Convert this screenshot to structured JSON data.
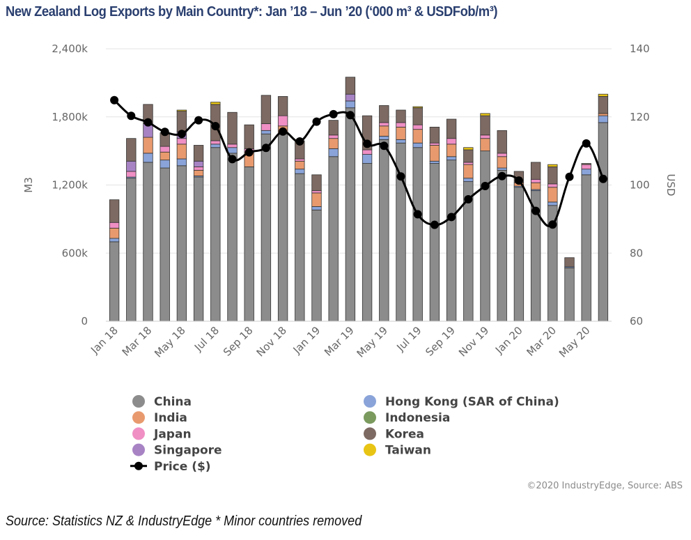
{
  "title": "New Zealand Log Exports by Main Country*: Jan ’18 – Jun ’20 (‘000 m³ & USDFob/m³)",
  "credit": "©2020 IndustryEdge, Source: ABS",
  "source": "Source: Statistics NZ & IndustryEdge * Minor countries removed",
  "chart_data": {
    "type": "bar",
    "stacked": true,
    "secondary_type": "line",
    "categories": [
      "Jan 18",
      "Feb 18",
      "Mar 18",
      "Apr 18",
      "May 18",
      "Jun 18",
      "Jul 18",
      "Aug 18",
      "Sep 18",
      "Oct 18",
      "Nov 18",
      "Dec 18",
      "Jan 19",
      "Feb 19",
      "Mar 19",
      "Apr 19",
      "May 19",
      "Jun 19",
      "Jul 19",
      "Aug 19",
      "Sep 19",
      "Oct 19",
      "Nov 19",
      "Dec 19",
      "Jan 20",
      "Feb 20",
      "Mar 20",
      "Apr 20",
      "May 20",
      "Jun 20"
    ],
    "x_tick_labels": [
      "Jan 18",
      "Mar 18",
      "May 18",
      "Jul 18",
      "Sep 18",
      "Nov 18",
      "Jan 19",
      "Mar 19",
      "May 19",
      "Jul 19",
      "Sep 19",
      "Nov 19",
      "Jan 20",
      "Mar 20",
      "May 20"
    ],
    "ylabel": "M3",
    "y2label": "USD",
    "ylim": [
      0,
      2400000
    ],
    "y2lim": [
      60,
      140
    ],
    "y_ticks": [
      0,
      600000,
      1200000,
      1800000,
      2400000
    ],
    "y_tick_labels": [
      "0",
      "600k",
      "1,200k",
      "1,800k",
      "2,400k"
    ],
    "y2_ticks": [
      60,
      80,
      100,
      120,
      140
    ],
    "grid": true,
    "legend_position": "bottom",
    "series": [
      {
        "name": "China",
        "color": "#8c8c8c",
        "values": [
          700000,
          1260000,
          1400000,
          1350000,
          1370000,
          1270000,
          1530000,
          1480000,
          1360000,
          1650000,
          1650000,
          1300000,
          980000,
          1450000,
          1880000,
          1390000,
          1600000,
          1570000,
          1530000,
          1390000,
          1420000,
          1230000,
          1500000,
          1330000,
          1180000,
          1150000,
          1020000,
          470000,
          1290000,
          1750000
        ]
      },
      {
        "name": "Hong Kong (SAR of China)",
        "color": "#8aa4d9",
        "values": [
          30000,
          10000,
          80000,
          70000,
          60000,
          10000,
          30000,
          50000,
          0,
          30000,
          0,
          40000,
          30000,
          70000,
          60000,
          80000,
          30000,
          30000,
          40000,
          20000,
          30000,
          30000,
          0,
          20000,
          10000,
          10000,
          30000,
          10000,
          50000,
          60000
        ]
      },
      {
        "name": "India",
        "color": "#e89a6e",
        "values": [
          90000,
          0,
          140000,
          70000,
          130000,
          50000,
          0,
          0,
          130000,
          0,
          70000,
          70000,
          120000,
          90000,
          0,
          0,
          90000,
          110000,
          120000,
          140000,
          110000,
          120000,
          110000,
          100000,
          30000,
          60000,
          130000,
          0,
          0,
          20000
        ]
      },
      {
        "name": "Indonesia",
        "color": "#7a9a5e",
        "values": [
          0,
          0,
          0,
          0,
          0,
          0,
          0,
          0,
          0,
          0,
          0,
          0,
          0,
          0,
          0,
          0,
          0,
          0,
          0,
          0,
          0,
          0,
          0,
          0,
          0,
          0,
          0,
          0,
          0,
          0
        ]
      },
      {
        "name": "Japan",
        "color": "#ef8fc4",
        "values": [
          50000,
          50000,
          0,
          50000,
          50000,
          30000,
          30000,
          30000,
          30000,
          60000,
          90000,
          20000,
          20000,
          30000,
          0,
          40000,
          30000,
          40000,
          40000,
          20000,
          50000,
          20000,
          30000,
          30000,
          0,
          30000,
          30000,
          0,
          40000,
          0
        ]
      },
      {
        "name": "Singapore",
        "color": "#a783c4",
        "values": [
          0,
          90000,
          120000,
          0,
          60000,
          50000,
          0,
          0,
          0,
          0,
          0,
          0,
          0,
          0,
          60000,
          0,
          0,
          0,
          0,
          0,
          0,
          0,
          0,
          0,
          0,
          0,
          0,
          0,
          0,
          0
        ]
      },
      {
        "name": "Korea",
        "color": "#7d6a62",
        "values": [
          200000,
          200000,
          170000,
          120000,
          180000,
          140000,
          320000,
          280000,
          210000,
          250000,
          170000,
          160000,
          140000,
          130000,
          150000,
          300000,
          150000,
          110000,
          150000,
          140000,
          170000,
          110000,
          170000,
          200000,
          100000,
          150000,
          150000,
          80000,
          10000,
          150000
        ]
      },
      {
        "name": "Taiwan",
        "color": "#e8c414",
        "values": [
          0,
          0,
          0,
          0,
          10000,
          0,
          20000,
          0,
          0,
          0,
          0,
          0,
          0,
          0,
          0,
          0,
          0,
          0,
          10000,
          0,
          0,
          20000,
          20000,
          0,
          0,
          0,
          20000,
          0,
          0,
          20000
        ]
      }
    ],
    "line": {
      "name": "Price ($)",
      "color": "#000000",
      "values": [
        124.9,
        120.3,
        118.4,
        115.6,
        115,
        119,
        117.3,
        107.6,
        109.6,
        110.9,
        115.7,
        112.8,
        118.6,
        120.8,
        120.5,
        112.1,
        111.5,
        102.5,
        91.4,
        88.3,
        90.6,
        95.8,
        99.7,
        102.6,
        101.3,
        92.4,
        88.4,
        102.4,
        112.2,
        101.8
      ]
    },
    "legend": [
      {
        "name": "China",
        "color": "#8c8c8c",
        "kind": "dot"
      },
      {
        "name": "Hong Kong (SAR of China)",
        "color": "#8aa4d9",
        "kind": "dot"
      },
      {
        "name": "India",
        "color": "#e89a6e",
        "kind": "dot"
      },
      {
        "name": "Indonesia",
        "color": "#7a9a5e",
        "kind": "dot"
      },
      {
        "name": "Japan",
        "color": "#ef8fc4",
        "kind": "dot"
      },
      {
        "name": "Korea",
        "color": "#7d6a62",
        "kind": "dot"
      },
      {
        "name": "Singapore",
        "color": "#a783c4",
        "kind": "dot"
      },
      {
        "name": "Taiwan",
        "color": "#e8c414",
        "kind": "dot"
      },
      {
        "name": "Price ($)",
        "color": "#000000",
        "kind": "line"
      }
    ]
  }
}
